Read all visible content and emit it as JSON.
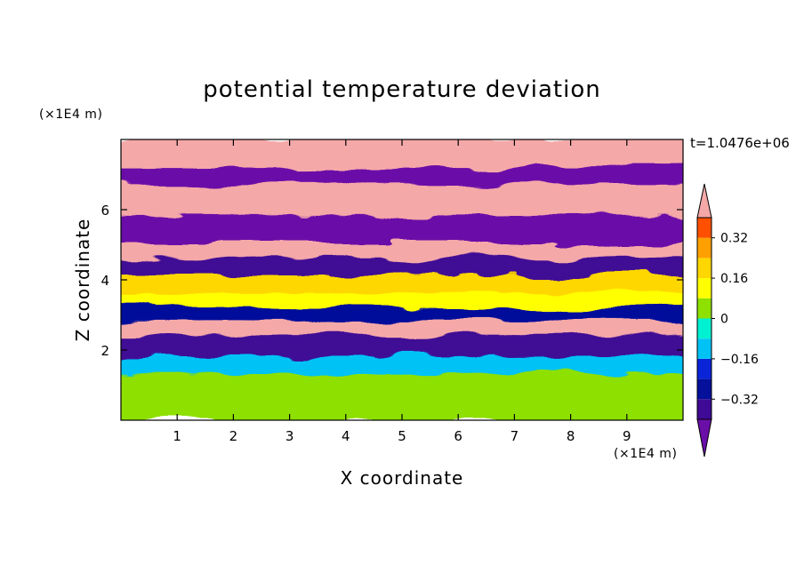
{
  "chart_data": {
    "type": "heatmap",
    "title": "potential temperature deviation",
    "xlabel": "X coordinate",
    "ylabel": "Z coordinate",
    "x_unit": "(×1E4 m)",
    "y_unit": "(×1E4 m)",
    "time_label": "t=1.0476e+06",
    "xlim": [
      0,
      10
    ],
    "ylim": [
      0,
      8
    ],
    "x_ticks": [
      "1",
      "2",
      "3",
      "4",
      "5",
      "6",
      "7",
      "8",
      "9"
    ],
    "y_ticks": [
      "2",
      "4",
      "6"
    ],
    "colorbar": {
      "levels": [
        -0.4,
        -0.32,
        -0.24,
        -0.16,
        -0.08,
        0,
        0.08,
        0.16,
        0.24,
        0.32,
        0.4
      ],
      "colors": [
        "#3f0a95",
        "#05109b",
        "#0a24d8",
        "#00c2f5",
        "#00f0d2",
        "#8ee000",
        "#ffff00",
        "#ffd700",
        "#ffa000",
        "#ff5000",
        "#ff2020",
        "#f5a8a8"
      ],
      "under_color": "#6a0ea8",
      "over_color": "#f5a8a8",
      "labels": [
        "0.32",
        "0.16",
        "0",
        "−0.16",
        "−0.32"
      ]
    },
    "bands": [
      {
        "z_min": 7.2,
        "z_max": 8.0,
        "value": 0.44
      },
      {
        "z_min": 6.7,
        "z_max": 7.2,
        "value": -0.44
      },
      {
        "z_min": 5.8,
        "z_max": 6.7,
        "value": 0.44
      },
      {
        "z_min": 5.0,
        "z_max": 5.8,
        "value": -0.44
      },
      {
        "z_min": 4.6,
        "z_max": 5.0,
        "value": 0.44
      },
      {
        "z_min": 4.1,
        "z_max": 4.6,
        "value": -0.36
      },
      {
        "z_min": 3.6,
        "z_max": 4.1,
        "value": 0.2
      },
      {
        "z_min": 3.2,
        "z_max": 3.6,
        "value": 0.1
      },
      {
        "z_min": 2.8,
        "z_max": 3.2,
        "value": -0.3
      },
      {
        "z_min": 2.4,
        "z_max": 2.8,
        "value": 0.44
      },
      {
        "z_min": 1.8,
        "z_max": 2.4,
        "value": -0.36
      },
      {
        "z_min": 1.3,
        "z_max": 1.8,
        "value": -0.1
      },
      {
        "z_min": 0.6,
        "z_max": 1.3,
        "value": 0.02
      },
      {
        "z_min": 0.0,
        "z_max": 0.6,
        "value": 0.06
      }
    ]
  }
}
